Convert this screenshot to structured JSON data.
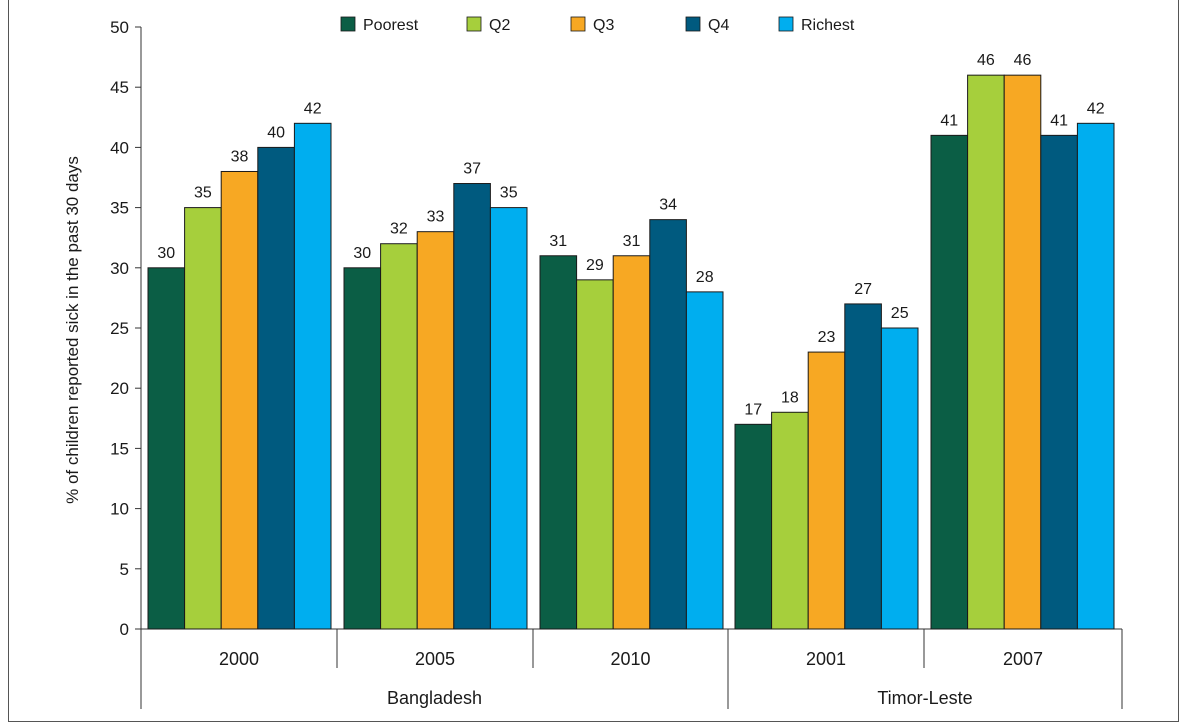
{
  "chart_data": {
    "type": "bar",
    "ylabel": "% of children reported sick in the past 30 days",
    "ylim": [
      0,
      50
    ],
    "yticks": [
      "0",
      "5",
      "10",
      "15",
      "20",
      "25",
      "30",
      "35",
      "40",
      "45",
      "50"
    ],
    "legend_position": "top",
    "categories": [
      "2000",
      "2005",
      "2010",
      "2001",
      "2007"
    ],
    "groups": [
      {
        "name": "Bangladesh",
        "categories": [
          "2000",
          "2005",
          "2010"
        ]
      },
      {
        "name": "Timor-Leste",
        "categories": [
          "2001",
          "2007"
        ]
      }
    ],
    "series": [
      {
        "name": "Poorest",
        "color": "#0b5e45",
        "values": [
          30,
          30,
          31,
          17,
          41
        ]
      },
      {
        "name": "Q2",
        "color": "#a6cf3c",
        "values": [
          35,
          32,
          29,
          18,
          46
        ]
      },
      {
        "name": "Q3",
        "color": "#f7a823",
        "values": [
          38,
          33,
          31,
          23,
          46
        ]
      },
      {
        "name": "Q4",
        "color": "#005a7f",
        "values": [
          40,
          37,
          34,
          27,
          41
        ]
      },
      {
        "name": "Richest",
        "color": "#00aeef",
        "values": [
          42,
          35,
          28,
          25,
          42
        ]
      }
    ]
  }
}
